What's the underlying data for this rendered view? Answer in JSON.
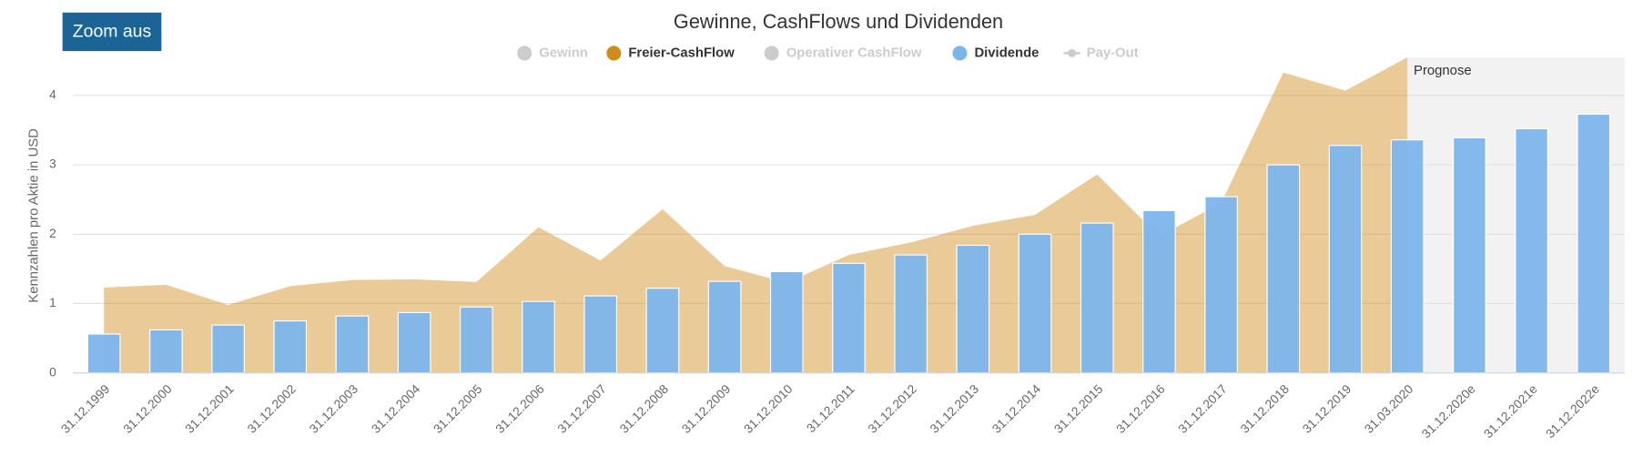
{
  "button": "Zoom aus",
  "chart_data": {
    "type": "bar",
    "title": "Gewinne, CashFlows und Dividenden",
    "y_label": "Kennzahlen pro Aktie in USD",
    "annotation": "Prognose",
    "forecast_from": "31.03.2020",
    "categories": [
      "31.12.1999",
      "31.12.2000",
      "31.12.2001",
      "31.12.2002",
      "31.12.2003",
      "31.12.2004",
      "31.12.2005",
      "31.12.2006",
      "31.12.2007",
      "31.12.2008",
      "31.12.2009",
      "31.12.2010",
      "31.12.2011",
      "31.12.2012",
      "31.12.2013",
      "31.12.2014",
      "31.12.2015",
      "31.12.2016",
      "31.12.2017",
      "31.12.2018",
      "31.12.2019",
      "31.03.2020",
      "31.12.2020e",
      "31.12.2021e",
      "31.12.2022e"
    ],
    "series": [
      {
        "name": "Gewinn",
        "color": "#cccccc",
        "visible": false,
        "kind": "dot"
      },
      {
        "name": "Freier-CashFlow",
        "color": "#d08b1b",
        "visible": true,
        "kind": "area",
        "values": [
          1.23,
          1.27,
          0.98,
          1.25,
          1.34,
          1.35,
          1.31,
          2.1,
          1.62,
          2.36,
          1.54,
          1.3,
          1.7,
          1.88,
          2.12,
          2.28,
          2.86,
          1.97,
          2.45,
          4.33,
          4.07,
          4.55,
          null,
          null,
          null
        ]
      },
      {
        "name": "Operativer CashFlow",
        "color": "#cccccc",
        "visible": false,
        "kind": "dot"
      },
      {
        "name": "Dividende",
        "color": "#7cb5ec",
        "visible": true,
        "kind": "bar",
        "values": [
          0.56,
          0.62,
          0.69,
          0.75,
          0.82,
          0.87,
          0.95,
          1.03,
          1.11,
          1.22,
          1.32,
          1.46,
          1.58,
          1.7,
          1.84,
          2.0,
          2.16,
          2.34,
          2.54,
          3.0,
          3.28,
          3.36,
          3.39,
          3.52,
          3.73
        ]
      },
      {
        "name": "Pay-Out",
        "color": "#cccccc",
        "visible": false,
        "kind": "line"
      }
    ],
    "ylim": [
      0,
      4.55
    ],
    "yticks": [
      0,
      1,
      2,
      3,
      4
    ],
    "grid": true
  }
}
